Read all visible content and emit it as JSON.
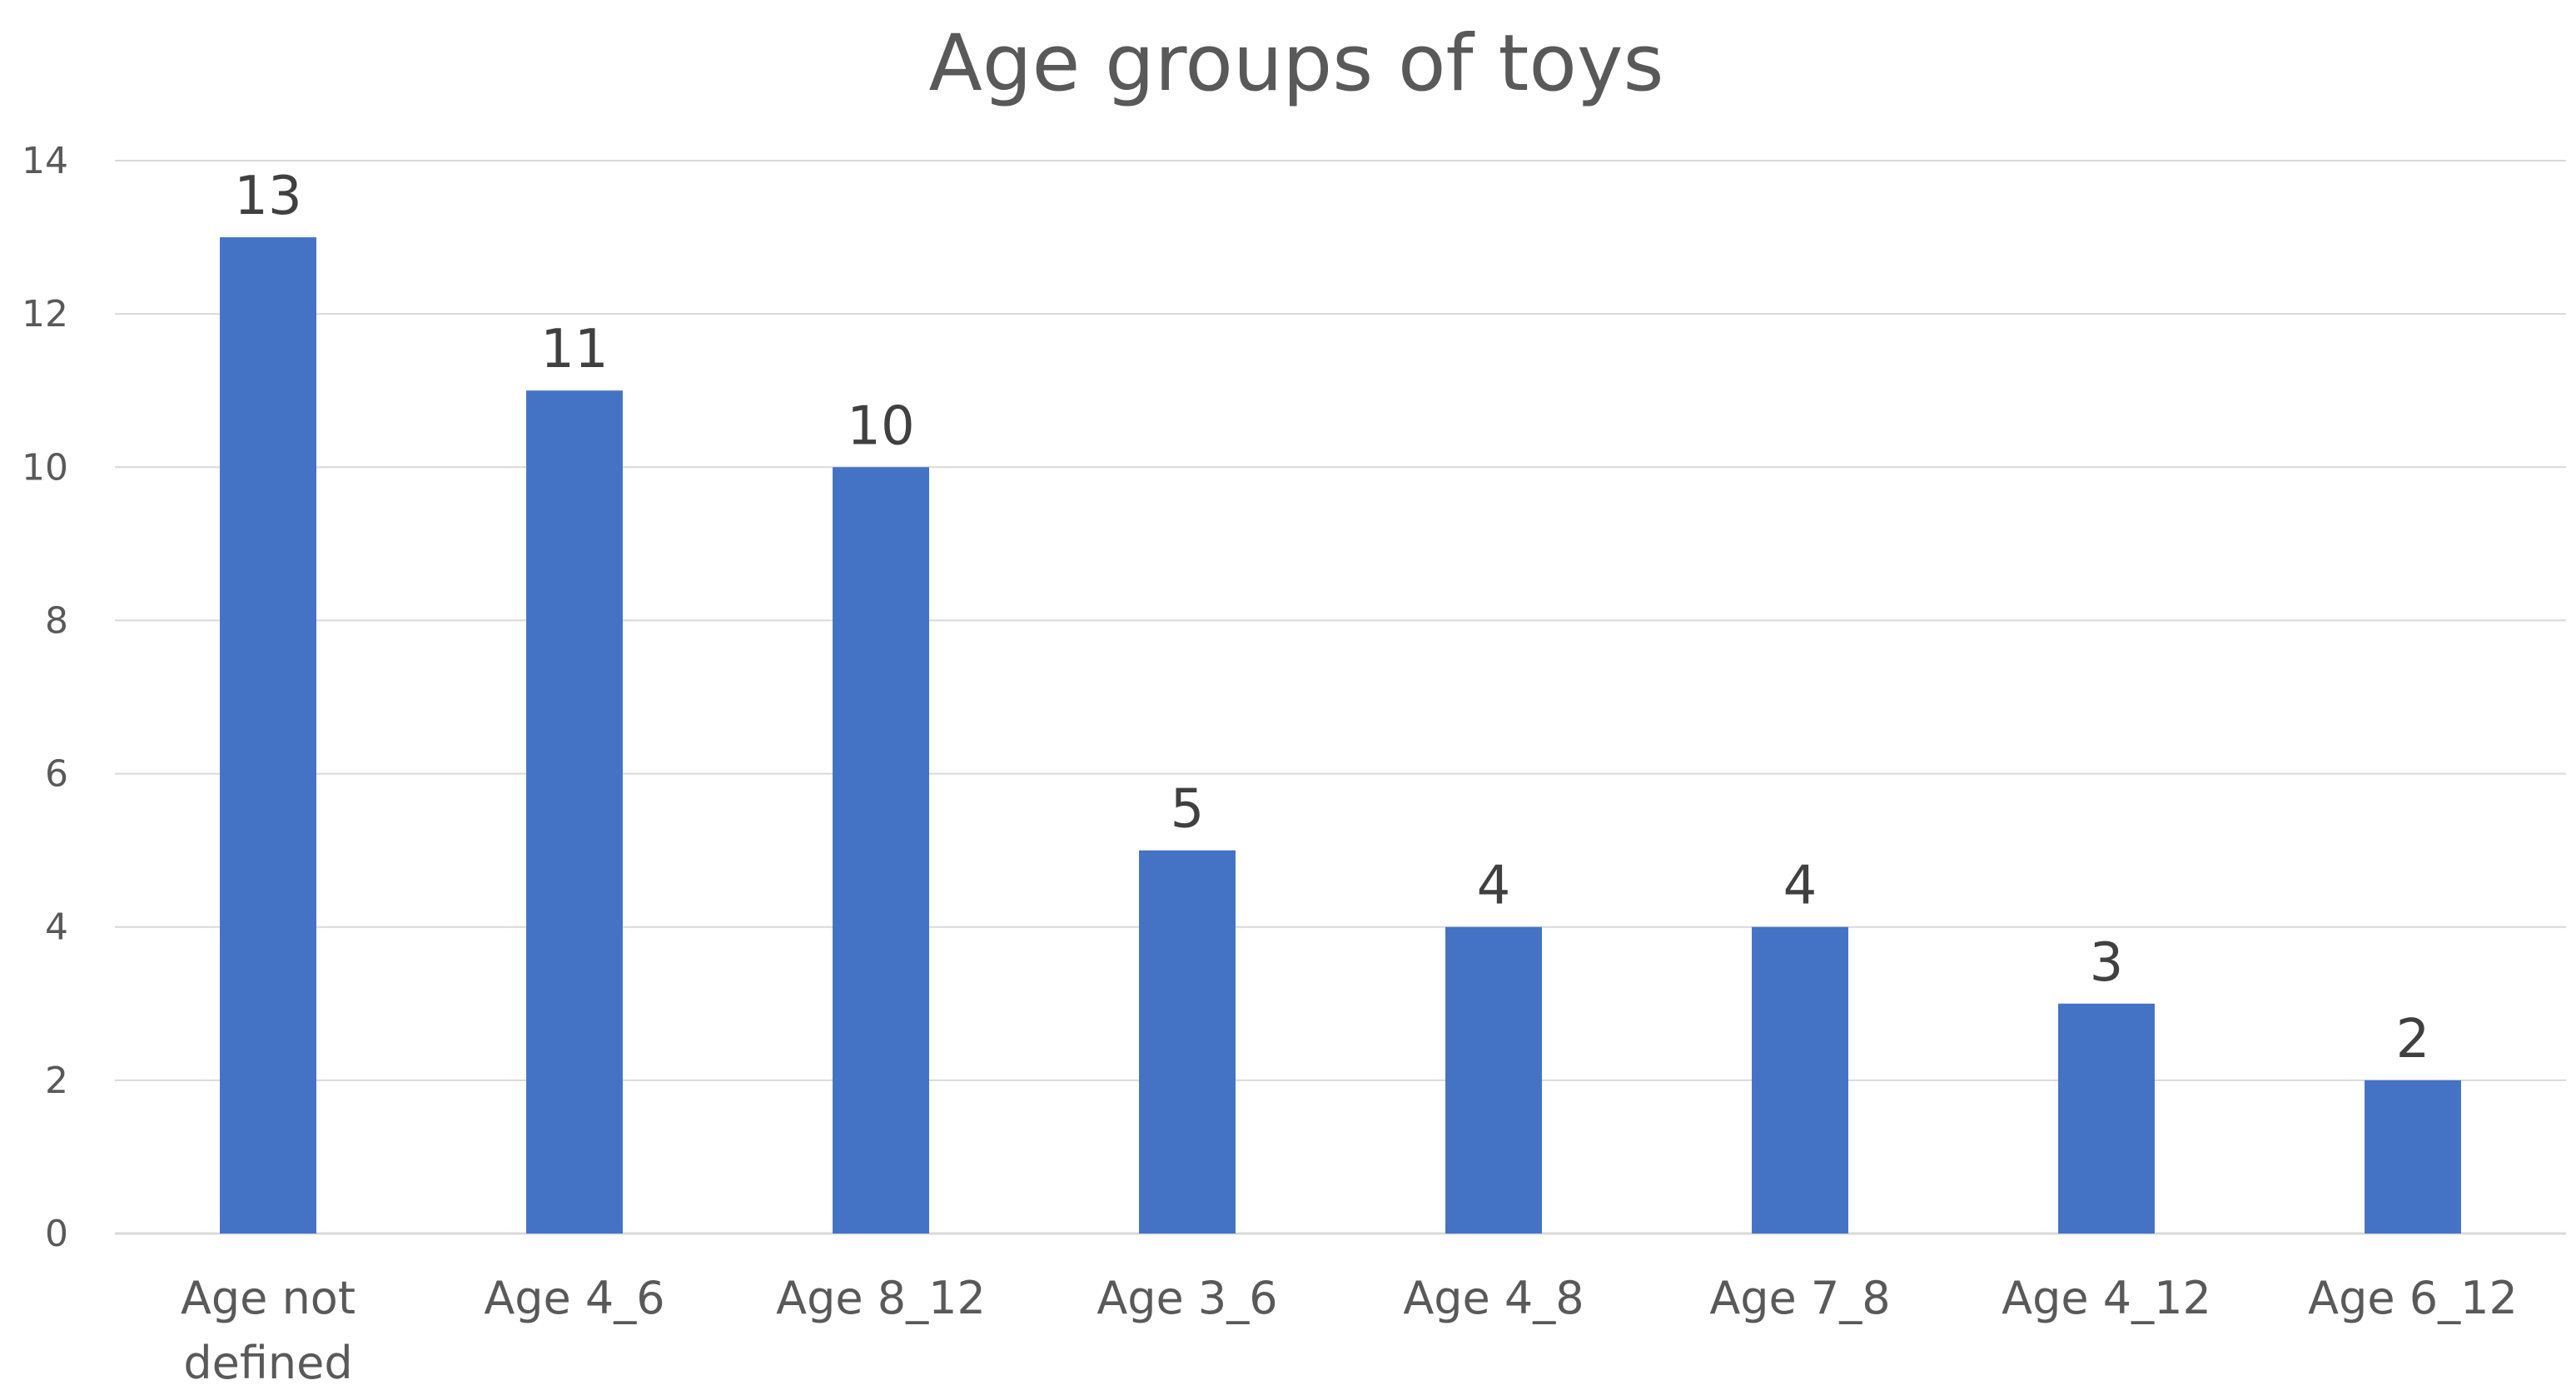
{
  "chart_data": {
    "type": "bar",
    "title": "Age groups of toys",
    "categories": [
      [
        "Age not",
        "defined"
      ],
      [
        "Age 4_6"
      ],
      [
        "Age 8_12"
      ],
      [
        "Age 3_6"
      ],
      [
        "Age 4_8"
      ],
      [
        "Age 7_8"
      ],
      [
        "Age 4_12"
      ],
      [
        "Age 6_12"
      ]
    ],
    "values": [
      13,
      11,
      10,
      5,
      4,
      4,
      3,
      2
    ],
    "data_labels": [
      "13",
      "11",
      "10",
      "5",
      "4",
      "4",
      "3",
      "2"
    ],
    "ylim": [
      0,
      14
    ],
    "yticks": [
      0,
      2,
      4,
      6,
      8,
      10,
      12,
      14
    ],
    "ytick_labels": [
      "0",
      "2",
      "4",
      "6",
      "8",
      "10",
      "12",
      "14"
    ],
    "xlabel": "",
    "ylabel": "",
    "grid": true,
    "legend": "none",
    "colors": {
      "bar": "#4472c4"
    }
  }
}
